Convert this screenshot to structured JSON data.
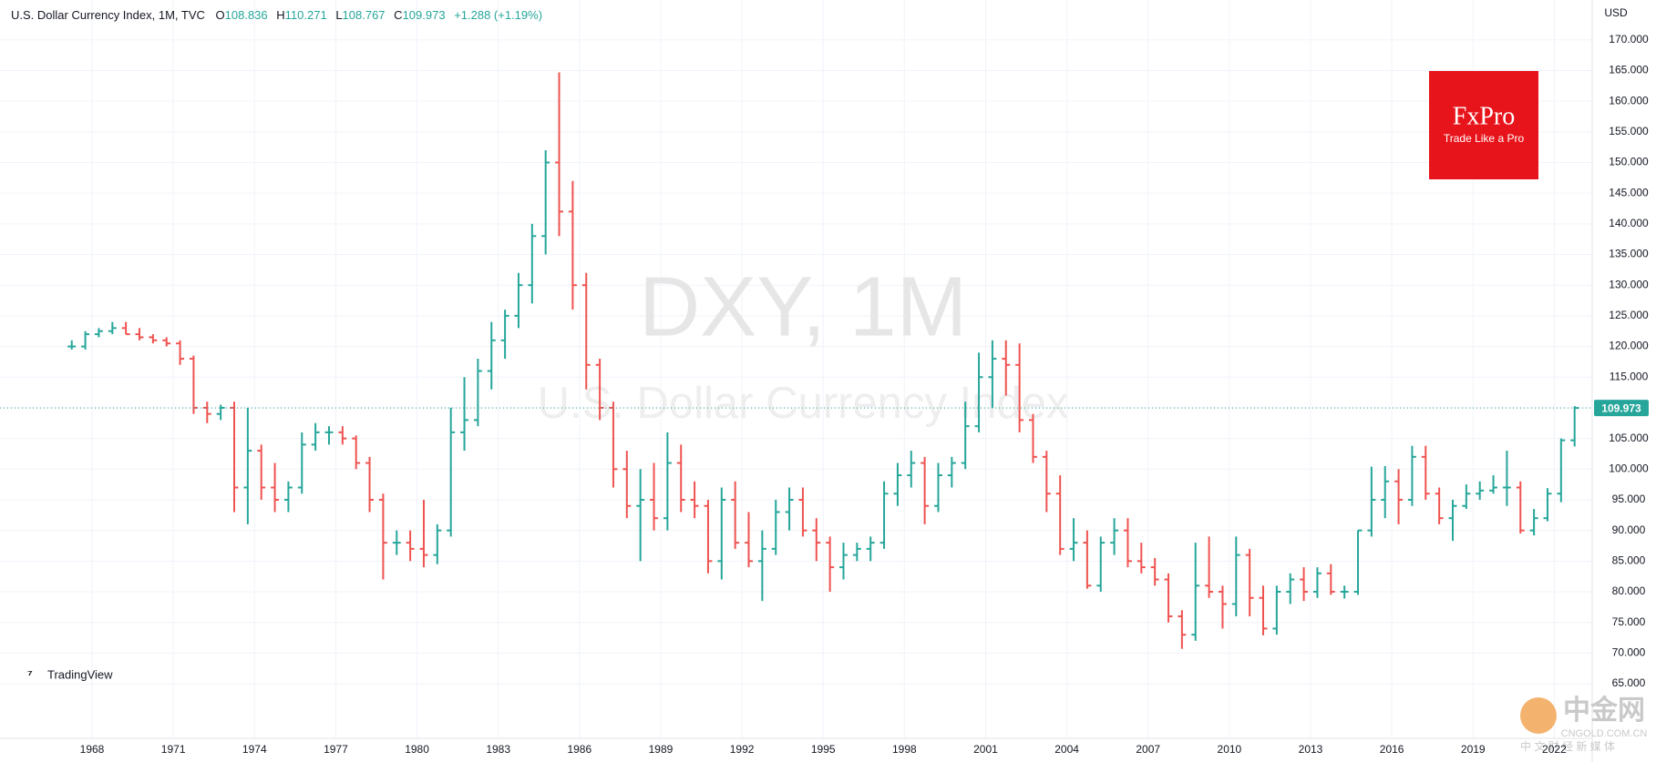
{
  "header": {
    "symbol": "U.S. Dollar Currency Index, 1M, TVC",
    "ohlc_labels": [
      "O",
      "H",
      "L",
      "C"
    ],
    "open": 108.836,
    "high": 110.271,
    "low": 108.767,
    "close": 109.973,
    "change": "+1.288 (+1.19%)"
  },
  "currency": "USD",
  "watermark": {
    "title": "DXY, 1M",
    "subtitle": "U.S. Dollar Currency Index"
  },
  "logo": {
    "brand": "FxPro",
    "slogan": "Trade Like a Pro"
  },
  "provider": "TradingView",
  "source_mark": {
    "name": "中金网",
    "domain": "CNGOLD.COM.CN",
    "tagline": "中 文 财 经 新 媒 体"
  },
  "chart_data": {
    "type": "ohlc",
    "up_color": "#26a69a",
    "down_color": "#ef5350",
    "grid": true,
    "last_price": 109.973,
    "xlim": [
      1964.6,
      2023.4
    ],
    "ylim": [
      56.1,
      176.5
    ],
    "xticks": [
      1968,
      1971,
      1974,
      1977,
      1980,
      1983,
      1986,
      1989,
      1992,
      1995,
      1998,
      2001,
      2004,
      2007,
      2010,
      2013,
      2016,
      2019,
      2022
    ],
    "yticks": [
      {
        "value": 65,
        "label": "65.000"
      },
      {
        "value": 70,
        "label": "70.000"
      },
      {
        "value": 75,
        "label": "75.000"
      },
      {
        "value": 80,
        "label": "80.000"
      },
      {
        "value": 85,
        "label": "85.000"
      },
      {
        "value": 90,
        "label": "90.000"
      },
      {
        "value": 95,
        "label": "95.000"
      },
      {
        "value": 100,
        "label": "100.000"
      },
      {
        "value": 105,
        "label": "105.000"
      },
      {
        "value": 110,
        "label": "110.000"
      },
      {
        "value": 115,
        "label": "115.000"
      },
      {
        "value": 120,
        "label": "120.000"
      },
      {
        "value": 125,
        "label": "125.000"
      },
      {
        "value": 130,
        "label": "130.000"
      },
      {
        "value": 135,
        "label": "135.000"
      },
      {
        "value": 140,
        "label": "140.000"
      },
      {
        "value": 145,
        "label": "145.000"
      },
      {
        "value": 150,
        "label": "150.000"
      },
      {
        "value": 155,
        "label": "155.000"
      },
      {
        "value": 160,
        "label": "160.000"
      },
      {
        "value": 165,
        "label": "165.000"
      },
      {
        "value": 170,
        "label": "170.000"
      }
    ],
    "x": [
      1967.25,
      1967.75,
      1968.25,
      1968.75,
      1969.25,
      1969.75,
      1970.25,
      1970.75,
      1971.25,
      1971.75,
      1972.25,
      1972.75,
      1973.25,
      1973.75,
      1974.25,
      1974.75,
      1975.25,
      1975.75,
      1976.25,
      1976.75,
      1977.25,
      1977.75,
      1978.25,
      1978.75,
      1979.25,
      1979.75,
      1980.25,
      1980.75,
      1981.25,
      1981.75,
      1982.25,
      1982.75,
      1983.25,
      1983.75,
      1984.25,
      1984.75,
      1985.25,
      1985.75,
      1986.25,
      1986.75,
      1987.25,
      1987.75,
      1988.25,
      1988.75,
      1989.25,
      1989.75,
      1990.25,
      1990.75,
      1991.25,
      1991.75,
      1992.25,
      1992.75,
      1993.25,
      1993.75,
      1994.25,
      1994.75,
      1995.25,
      1995.75,
      1996.25,
      1996.75,
      1997.25,
      1997.75,
      1998.25,
      1998.75,
      1999.25,
      1999.75,
      2000.25,
      2000.75,
      2001.25,
      2001.75,
      2002.25,
      2002.75,
      2003.25,
      2003.75,
      2004.25,
      2004.75,
      2005.25,
      2005.75,
      2006.25,
      2006.75,
      2007.25,
      2007.75,
      2008.25,
      2008.75,
      2009.25,
      2009.75,
      2010.25,
      2010.75,
      2011.25,
      2011.75,
      2012.25,
      2012.75,
      2013.25,
      2013.75,
      2014.25,
      2014.75,
      2015.25,
      2015.75,
      2016.25,
      2016.75,
      2017.25,
      2017.75,
      2018.25,
      2018.75,
      2019.25,
      2019.75,
      2020.25,
      2020.75,
      2021.25,
      2021.75,
      2022.25,
      2022.75
    ],
    "open": [
      120,
      120,
      122,
      122.5,
      123,
      122,
      121.5,
      121,
      120.5,
      118,
      110,
      109,
      110,
      97,
      103,
      97,
      95,
      97,
      104,
      106,
      106,
      105,
      101,
      95,
      88,
      88,
      87,
      86,
      90,
      106,
      108,
      116,
      121,
      125,
      130,
      138,
      150,
      142,
      130,
      117,
      110,
      100,
      94,
      95,
      92,
      101,
      95,
      94,
      85,
      95,
      88,
      85,
      87,
      93,
      95,
      90,
      88,
      84,
      86,
      87,
      88,
      96,
      99,
      101,
      94,
      99,
      101,
      107,
      115,
      118,
      117,
      108,
      102,
      96,
      87,
      88,
      81,
      88,
      90,
      85,
      84,
      82,
      76,
      73,
      81,
      80,
      78,
      86,
      79,
      74,
      80,
      82,
      80,
      83,
      80,
      80,
      90,
      95,
      98,
      95,
      102,
      96,
      92,
      94,
      96,
      96.5,
      97,
      97,
      90,
      92,
      96,
      104.7
    ],
    "high": [
      121,
      122.5,
      123,
      124,
      124,
      123,
      122,
      121.5,
      121,
      118.5,
      111,
      110.5,
      111,
      110,
      104,
      101,
      98,
      106,
      107.5,
      107,
      107,
      105.5,
      102,
      96,
      90,
      90,
      95,
      91,
      110,
      115,
      118,
      124,
      126,
      132,
      140,
      152,
      164.7,
      147,
      132,
      118,
      111,
      103,
      100,
      101,
      106,
      104,
      98,
      95,
      97,
      98,
      93,
      90,
      95,
      97,
      97,
      92,
      89,
      88,
      88,
      89,
      98,
      101,
      103,
      102,
      101,
      102,
      111,
      119,
      121,
      121,
      120.5,
      109,
      103,
      99,
      92,
      90,
      89,
      92,
      92,
      88,
      85.5,
      83,
      77,
      88,
      89,
      81,
      89,
      87,
      81,
      81,
      83,
      84,
      84,
      84.5,
      81,
      90,
      100.4,
      100.5,
      100,
      103.8,
      103.8,
      97,
      95,
      97.5,
      98,
      99,
      103,
      98,
      93.5,
      96.9,
      105,
      110.271
    ],
    "low": [
      119.5,
      119.5,
      121.5,
      122,
      122,
      121,
      120.5,
      120,
      117,
      109,
      107.5,
      108,
      93,
      91,
      95,
      93,
      93,
      96,
      103,
      104,
      104,
      100,
      93,
      82,
      86,
      85,
      84,
      84.5,
      89,
      103,
      107,
      113,
      118,
      123,
      127,
      135,
      138,
      126,
      113,
      108,
      97,
      92,
      85,
      90,
      90,
      93,
      92,
      83,
      82,
      87,
      84,
      78.5,
      86,
      90,
      89,
      85,
      80,
      82,
      85,
      85,
      87,
      94,
      97,
      91,
      93,
      97,
      100,
      106,
      110,
      112,
      106,
      101,
      93,
      86,
      85,
      80.5,
      80,
      86,
      84,
      83,
      81,
      75,
      70.7,
      72,
      79,
      74,
      76,
      76,
      72.9,
      73,
      78,
      78.5,
      79,
      79.5,
      78.9,
      79.5,
      89,
      92,
      91,
      94,
      95,
      91,
      88.3,
      93.5,
      95,
      96,
      94,
      89.5,
      89.2,
      91.5,
      94.6,
      103.7
    ],
    "close": [
      120,
      122,
      122.5,
      123,
      122,
      121.5,
      121,
      120.5,
      118,
      110,
      109,
      110,
      97,
      103,
      97,
      95,
      97,
      104,
      106,
      106,
      105,
      101,
      95,
      88,
      88,
      87,
      86,
      90,
      106,
      108,
      116,
      121,
      125,
      130,
      138,
      150,
      142,
      130,
      117,
      110,
      100,
      94,
      95,
      92,
      101,
      95,
      94,
      85,
      95,
      88,
      85,
      87,
      93,
      95,
      90,
      88,
      84,
      86,
      87,
      88,
      96,
      99,
      101,
      94,
      99,
      101,
      107,
      115,
      118,
      117,
      108,
      102,
      96,
      87,
      88,
      81,
      88,
      90,
      85,
      84,
      82,
      76,
      73,
      81,
      80,
      78,
      86,
      79,
      74,
      80,
      82,
      80,
      83,
      80,
      80,
      90,
      95,
      98,
      95,
      102,
      96,
      92,
      94,
      96,
      96.5,
      97,
      97,
      90,
      92,
      96,
      104.7,
      109.973
    ]
  }
}
